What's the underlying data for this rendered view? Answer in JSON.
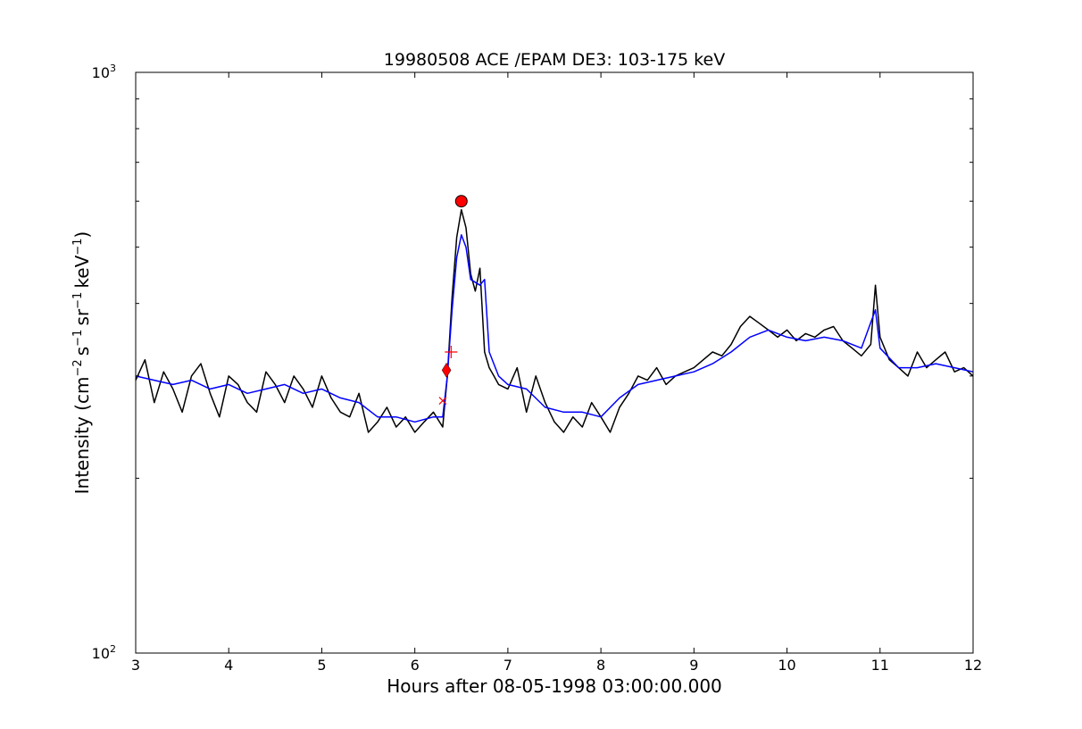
{
  "chart_data": {
    "type": "line",
    "title": "19980508 ACE /EPAM DE3: 103-175 keV",
    "xlabel": "Hours after 08-05-1998 03:00:00.000",
    "ylabel_parts": [
      "Intensity (cm",
      "−2",
      "s",
      "−1",
      "sr",
      "−1",
      "keV",
      "−1",
      ")"
    ],
    "xlim": [
      3,
      12
    ],
    "ylim": [
      100,
      1000
    ],
    "yscale": "log",
    "grid": false,
    "legend": "none",
    "x_ticks": [
      3,
      4,
      5,
      6,
      7,
      8,
      9,
      10,
      11,
      12
    ],
    "x_tick_labels": [
      "3",
      "4",
      "5",
      "6",
      "7",
      "8",
      "9",
      "10",
      "11",
      "12"
    ],
    "y_tick_labels": [
      {
        "value": 100,
        "base": "10",
        "exp": "2"
      },
      {
        "value": 1000,
        "base": "10",
        "exp": "3"
      }
    ],
    "y_minor_ticks": [
      200,
      300,
      400,
      500,
      600,
      700,
      800,
      900
    ],
    "series": [
      {
        "color": "#000000",
        "linewidth": 1.5,
        "x": [
          3.0,
          3.1,
          3.2,
          3.3,
          3.4,
          3.5,
          3.6,
          3.7,
          3.8,
          3.9,
          4.0,
          4.1,
          4.2,
          4.3,
          4.4,
          4.5,
          4.6,
          4.7,
          4.8,
          4.9,
          5.0,
          5.1,
          5.2,
          5.3,
          5.4,
          5.5,
          5.6,
          5.7,
          5.8,
          5.9,
          6.0,
          6.1,
          6.2,
          6.3,
          6.35,
          6.4,
          6.45,
          6.5,
          6.55,
          6.6,
          6.65,
          6.7,
          6.75,
          6.8,
          6.85,
          6.9,
          7.0,
          7.1,
          7.2,
          7.3,
          7.4,
          7.5,
          7.6,
          7.7,
          7.8,
          7.9,
          8.0,
          8.1,
          8.2,
          8.3,
          8.4,
          8.5,
          8.6,
          8.7,
          8.8,
          8.9,
          9.0,
          9.1,
          9.2,
          9.3,
          9.4,
          9.5,
          9.6,
          9.7,
          9.8,
          9.9,
          10.0,
          10.1,
          10.2,
          10.3,
          10.4,
          10.5,
          10.6,
          10.7,
          10.8,
          10.9,
          10.95,
          11.0,
          11.1,
          11.2,
          11.3,
          11.4,
          11.5,
          11.6,
          11.7,
          11.8,
          11.9,
          12.0
        ],
        "values": [
          295,
          320,
          270,
          305,
          285,
          260,
          300,
          315,
          280,
          255,
          300,
          290,
          270,
          260,
          305,
          290,
          270,
          300,
          285,
          265,
          300,
          275,
          260,
          255,
          280,
          240,
          250,
          265,
          245,
          255,
          240,
          250,
          260,
          245,
          300,
          410,
          520,
          580,
          540,
          450,
          420,
          460,
          330,
          310,
          300,
          290,
          285,
          310,
          260,
          300,
          270,
          250,
          240,
          255,
          245,
          270,
          255,
          240,
          265,
          280,
          300,
          295,
          310,
          290,
          300,
          305,
          310,
          320,
          330,
          325,
          340,
          365,
          380,
          370,
          360,
          350,
          360,
          345,
          355,
          350,
          360,
          365,
          345,
          335,
          325,
          340,
          430,
          350,
          320,
          310,
          300,
          330,
          310,
          320,
          330,
          305,
          310,
          300
        ]
      },
      {
        "color": "#0000ff",
        "linewidth": 1.5,
        "x": [
          3.0,
          3.2,
          3.4,
          3.6,
          3.8,
          4.0,
          4.2,
          4.4,
          4.6,
          4.8,
          5.0,
          5.2,
          5.4,
          5.6,
          5.8,
          6.0,
          6.2,
          6.3,
          6.35,
          6.4,
          6.45,
          6.5,
          6.55,
          6.6,
          6.7,
          6.75,
          6.8,
          6.9,
          7.0,
          7.2,
          7.4,
          7.6,
          7.8,
          8.0,
          8.2,
          8.4,
          8.6,
          8.8,
          9.0,
          9.2,
          9.4,
          9.6,
          9.8,
          10.0,
          10.2,
          10.4,
          10.6,
          10.8,
          10.95,
          11.0,
          11.2,
          11.4,
          11.6,
          11.8,
          12.0
        ],
        "values": [
          300,
          295,
          290,
          295,
          285,
          290,
          280,
          285,
          290,
          280,
          285,
          275,
          270,
          255,
          255,
          250,
          255,
          255,
          300,
          390,
          480,
          525,
          500,
          440,
          430,
          440,
          330,
          300,
          290,
          285,
          265,
          260,
          260,
          255,
          275,
          290,
          295,
          300,
          305,
          315,
          330,
          350,
          360,
          350,
          345,
          350,
          345,
          335,
          390,
          335,
          310,
          310,
          315,
          310,
          305
        ]
      }
    ],
    "markers": [
      {
        "shape": "circle",
        "x": 6.5,
        "y": 600,
        "color": "#ff0000"
      },
      {
        "shape": "diamond",
        "x": 6.34,
        "y": 307,
        "color": "#ff0000"
      },
      {
        "shape": "plus",
        "x": 6.39,
        "y": 330,
        "color": "#ff0000"
      },
      {
        "shape": "x",
        "x": 6.3,
        "y": 272,
        "color": "#ff0000"
      }
    ]
  }
}
